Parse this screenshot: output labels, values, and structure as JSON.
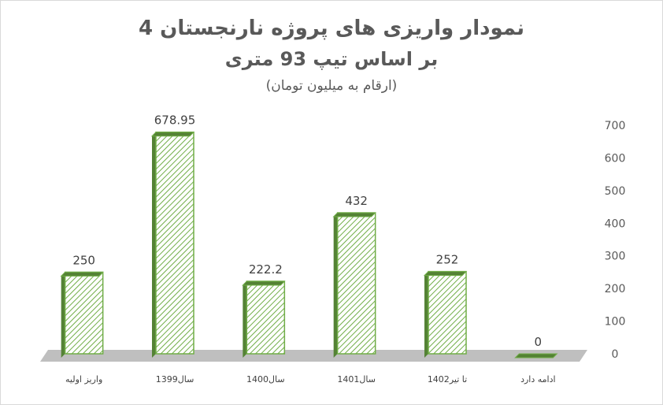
{
  "chart_data": {
    "type": "bar",
    "title": "نمودار واریزی های پروژه نارنجستان 4",
    "subtitle": "بر اساس تیپ 93 متری",
    "note": "(ارقام به میلیون تومان)",
    "categories": [
      "واریز اولیه",
      "سال1399",
      "سال1400",
      "سال1401",
      "تا تیر1402",
      "ادامه دارد"
    ],
    "values": [
      250,
      678.95,
      222.2,
      432,
      252,
      0
    ],
    "color": "#70ad47",
    "ylim": [
      0,
      700
    ],
    "yticks": [
      0,
      100,
      200,
      300,
      400,
      500,
      600,
      700
    ],
    "grid": false
  }
}
